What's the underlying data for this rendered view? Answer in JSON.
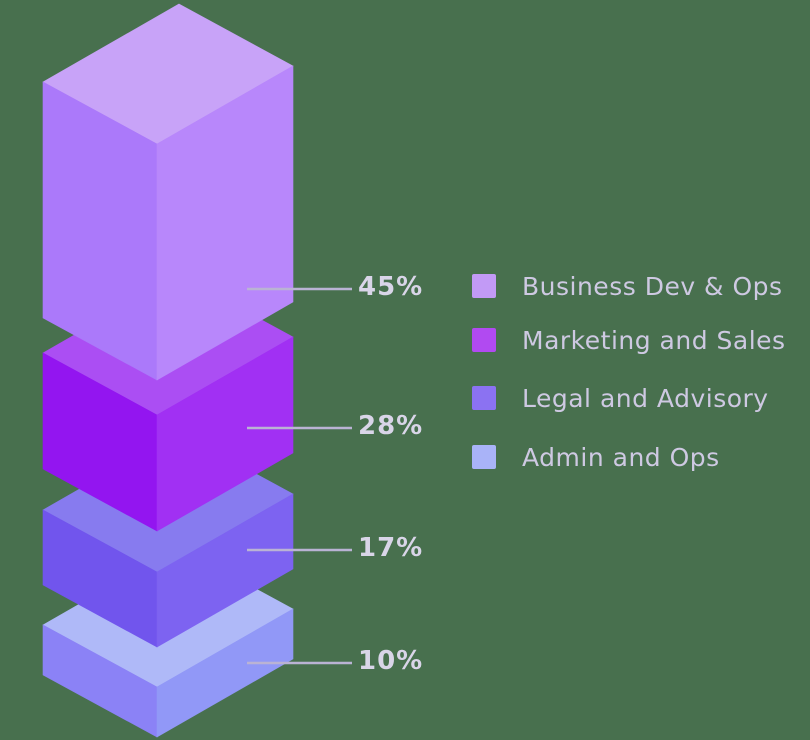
{
  "chart_data": {
    "type": "bar",
    "variant": "isometric-3d-exploded-stack",
    "title": "",
    "xlabel": "",
    "ylabel": "",
    "legend_position": "right",
    "grid": false,
    "background_color": "#48704e",
    "callout_line_color": "#bab3d4",
    "value_label_color": "#d9d5e8",
    "legend_text_color": "#cec9e2",
    "segments": [
      {
        "label": "Business Dev & Ops",
        "value": 45,
        "display": "45%",
        "colors": {
          "top": "#c8a3f8",
          "left": "#ab79fa",
          "right": "#b887fb",
          "swatch": "#c29af6"
        }
      },
      {
        "label": "Marketing and Sales",
        "value": 28,
        "display": "28%",
        "colors": {
          "top": "#ab4ef3",
          "left": "#9315f0",
          "right": "#a130f3",
          "swatch": "#b14af1"
        }
      },
      {
        "label": "Legal and Advisory",
        "value": 17,
        "display": "17%",
        "colors": {
          "top": "#877bef",
          "left": "#7155ed",
          "right": "#7d63f1",
          "swatch": "#8b72f2"
        }
      },
      {
        "label": "Admin and Ops",
        "value": 10,
        "display": "10%",
        "colors": {
          "top": "#afb9f8",
          "left": "#8b82f6",
          "right": "#9198f7",
          "swatch": "#a9b3f8"
        }
      }
    ]
  }
}
